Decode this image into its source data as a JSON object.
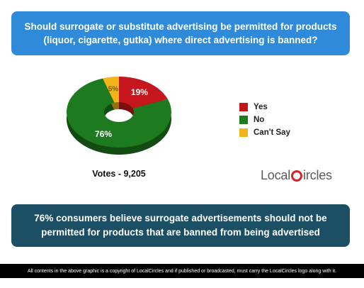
{
  "question": "Should surrogate or substitute advertising be permitted for products (liquor, cigarette, gutka) where direct advertising is banned?",
  "chart_data": {
    "type": "pie",
    "categories": [
      "Yes",
      "No",
      "Can't Say"
    ],
    "values": [
      19,
      76,
      5
    ],
    "value_labels": [
      "19%",
      "76%",
      "5%"
    ],
    "colors": [
      "#c4161c",
      "#1e7a1e",
      "#f2b418"
    ],
    "legend_position": "right"
  },
  "votes": "Votes - 9,205",
  "logo": {
    "left": "Local",
    "right": "ircles"
  },
  "finding": "76% consumers believe surrogate advertisements should not be permitted for products that are banned from being advertised",
  "footer": "All contents in the above graphic is a copyright of LocalCircles and if published or broadcasted, must carry the LocalCircles logo along with it."
}
